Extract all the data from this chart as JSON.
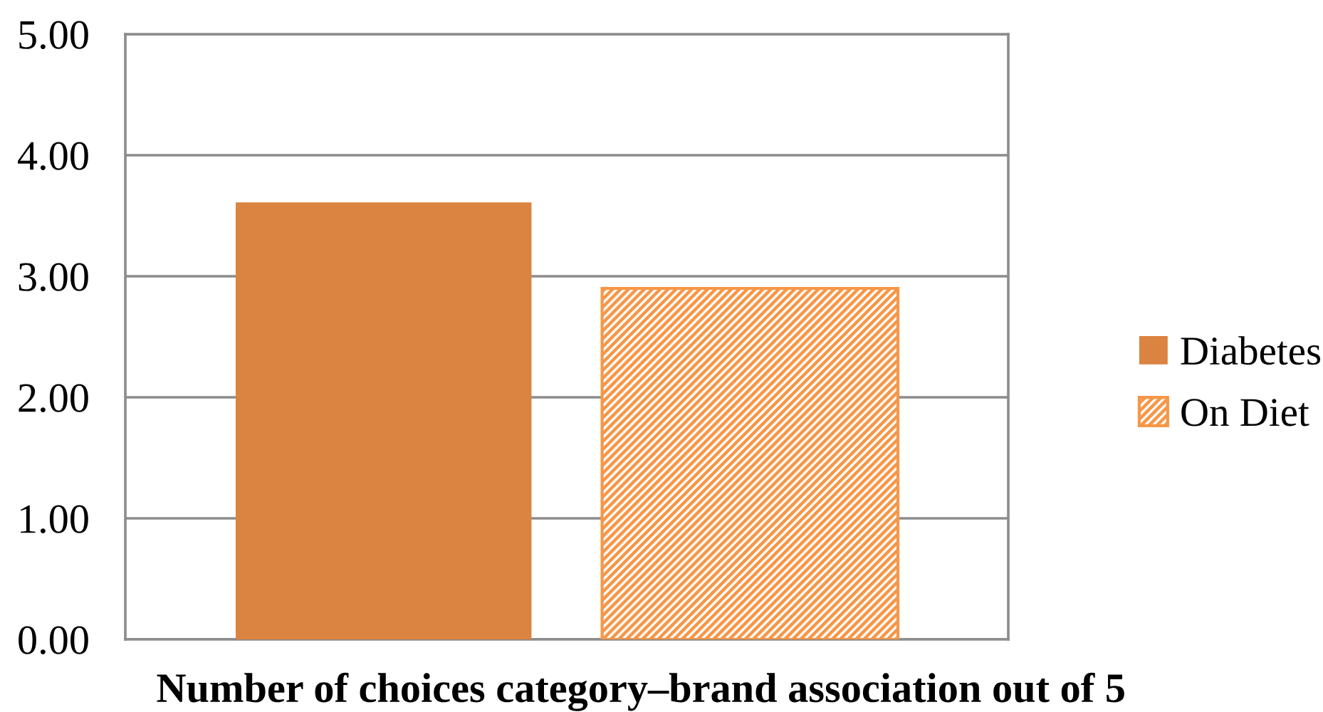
{
  "chart_data": {
    "type": "bar",
    "xlabel": "Number of choices category–brand association out of 5",
    "categories": [
      null
    ],
    "series": [
      {
        "name": "Diabetes",
        "color": "#db8340",
        "values": [
          3.61
        ]
      },
      {
        "name": "On Diet",
        "color": "#f79646",
        "values": [
          2.9
        ]
      }
    ],
    "ylim": [
      0,
      5
    ],
    "yticks": [
      {
        "value": 0,
        "label": "0.00"
      },
      {
        "value": 1,
        "label": "1.00"
      },
      {
        "value": 2,
        "label": "2.00"
      },
      {
        "value": 3,
        "label": "3.00"
      },
      {
        "value": 4,
        "label": "4.00"
      },
      {
        "value": 5,
        "label": "5.00"
      }
    ],
    "grid": "y",
    "legend": "right"
  }
}
